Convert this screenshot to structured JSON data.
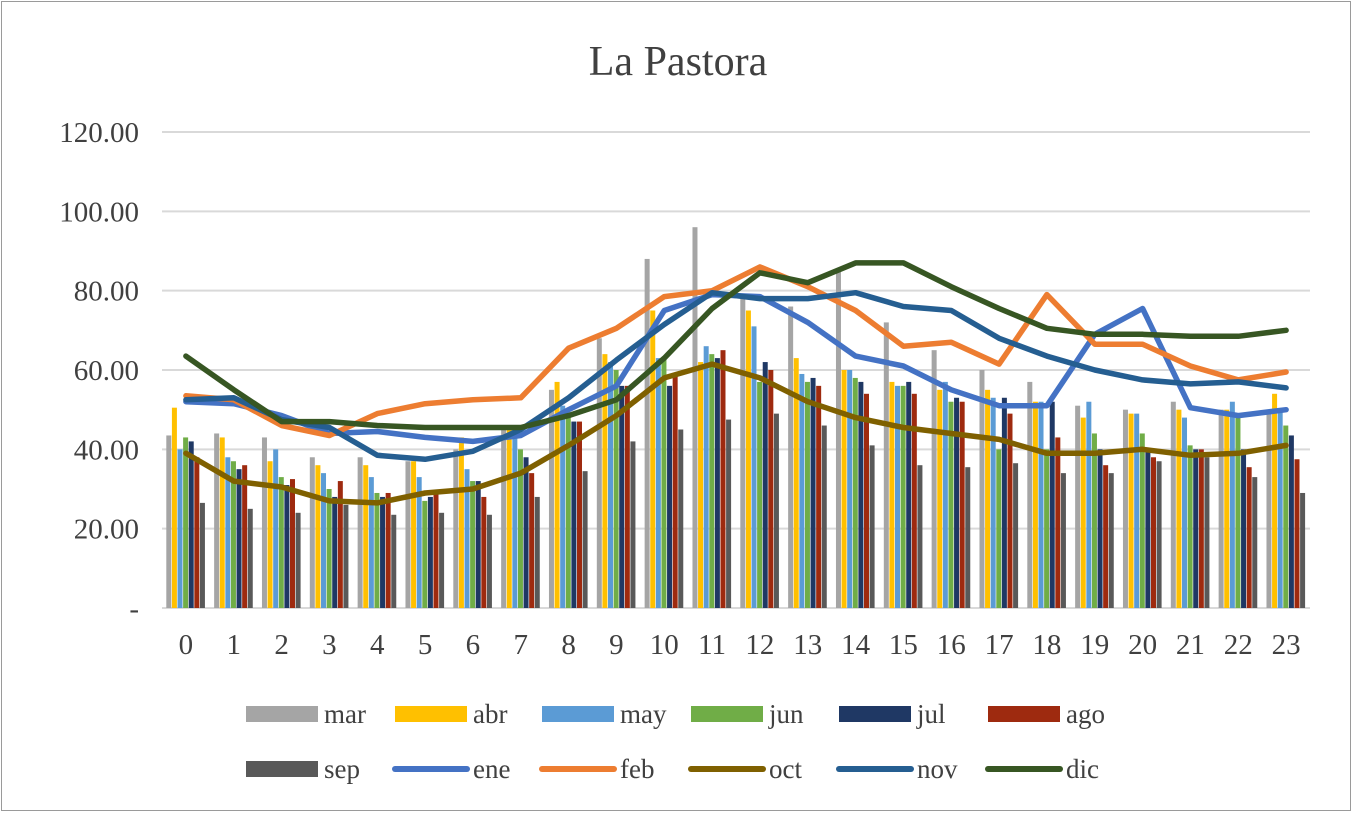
{
  "chart_data": {
    "type": "bar+line",
    "title": "La Pastora",
    "xlabel": "",
    "ylabel": "",
    "categories": [
      "0",
      "1",
      "2",
      "3",
      "4",
      "5",
      "6",
      "7",
      "8",
      "9",
      "10",
      "11",
      "12",
      "13",
      "14",
      "15",
      "16",
      "17",
      "18",
      "19",
      "20",
      "21",
      "22",
      "23"
    ],
    "ylim": [
      0,
      120
    ],
    "yticks": [
      0,
      20,
      40,
      60,
      80,
      100,
      120
    ],
    "ytick_labels": [
      "-",
      "20.00",
      "40.00",
      "60.00",
      "80.00",
      "100.00",
      "120.00"
    ],
    "grid": true,
    "legend_position": "bottom",
    "bar_series": [
      {
        "name": "mar",
        "color": "#a5a5a5",
        "values": [
          43.5,
          44,
          43,
          38,
          38,
          37,
          40,
          46,
          55,
          68,
          88,
          96,
          78,
          76,
          85,
          72,
          65,
          60,
          57,
          51,
          50,
          52,
          50,
          50
        ]
      },
      {
        "name": "abr",
        "color": "#ffc000",
        "values": [
          50.5,
          43,
          37,
          36,
          36,
          37,
          43,
          45,
          57,
          64,
          75,
          62,
          75,
          63,
          60,
          57,
          55,
          55,
          52,
          48,
          49,
          50,
          50,
          54
        ]
      },
      {
        "name": "may",
        "color": "#5b9bd5",
        "values": [
          40,
          38,
          40,
          34,
          33,
          33,
          35,
          45,
          51,
          62,
          63,
          66,
          71,
          59,
          60,
          56,
          57,
          53,
          52,
          52,
          49,
          48,
          52,
          50
        ]
      },
      {
        "name": "jun",
        "color": "#70ad47",
        "values": [
          43,
          37,
          33,
          30,
          29,
          27,
          32,
          40,
          48,
          60,
          63,
          64,
          57,
          57,
          58,
          56,
          52,
          40,
          40,
          44,
          44,
          41,
          48,
          46
        ]
      },
      {
        "name": "jul",
        "color": "#1f3864",
        "values": [
          42,
          35,
          31,
          28,
          28,
          28,
          32,
          38,
          47,
          56,
          56,
          63,
          62,
          58,
          57,
          57,
          53,
          53,
          52,
          40,
          40,
          40,
          40,
          43.5
        ]
      },
      {
        "name": "ago",
        "color": "#9e2a0f",
        "values": [
          38,
          36,
          32.5,
          32,
          29,
          29,
          28,
          34,
          47,
          56,
          59,
          65,
          60,
          56,
          54,
          54,
          52,
          49,
          43,
          36,
          38,
          40,
          35.5,
          37.5
        ]
      },
      {
        "name": "sep",
        "color": "#595959",
        "values": [
          26.5,
          25,
          24,
          26,
          23.5,
          24,
          23.5,
          28,
          34.5,
          42,
          45,
          47.5,
          49,
          46,
          41,
          36,
          35.5,
          36.5,
          34,
          34,
          37,
          38,
          33,
          29
        ]
      }
    ],
    "line_series": [
      {
        "name": "ene",
        "color": "#4472c4",
        "values": [
          52,
          51.5,
          48.5,
          44,
          44.5,
          43,
          42,
          43.5,
          50,
          56,
          75,
          79,
          78.5,
          72,
          63.5,
          61,
          55,
          51,
          51,
          69,
          75.5,
          50.5,
          48.5,
          50
        ]
      },
      {
        "name": "feb",
        "color": "#ed7d31",
        "values": [
          53.5,
          52.5,
          46,
          43.5,
          49,
          51.5,
          52.5,
          53,
          65.5,
          70.5,
          78.5,
          80,
          86,
          81,
          75,
          66,
          67,
          61.5,
          79,
          66.5,
          66.5,
          61,
          57.5,
          59.5
        ]
      },
      {
        "name": "oct",
        "color": "#7f6000",
        "values": [
          39,
          32,
          30.5,
          27,
          26.5,
          29,
          30,
          34,
          41,
          48.5,
          58,
          61.5,
          58,
          52,
          48,
          45.5,
          44,
          42.5,
          39,
          39,
          40,
          38.5,
          39,
          41
        ]
      },
      {
        "name": "nov",
        "color": "#255e91",
        "values": [
          52.5,
          53,
          47.5,
          45.5,
          38.5,
          37.5,
          39.5,
          45,
          53,
          62.5,
          71.5,
          79.5,
          78,
          78,
          79.5,
          76,
          75,
          68,
          63.5,
          60,
          57.5,
          56.5,
          57,
          55.5
        ]
      },
      {
        "name": "dic",
        "color": "#375623",
        "values": [
          63.5,
          55,
          47,
          47,
          46,
          45.5,
          45.5,
          45.5,
          48.5,
          52.5,
          63,
          75.5,
          84.5,
          82,
          87,
          87,
          81,
          75.5,
          70.5,
          69,
          69,
          68.5,
          68.5,
          70
        ]
      }
    ],
    "legend": [
      "mar",
      "abr",
      "may",
      "jun",
      "jul",
      "ago",
      "sep",
      "ene",
      "feb",
      "oct",
      "nov",
      "dic"
    ]
  }
}
